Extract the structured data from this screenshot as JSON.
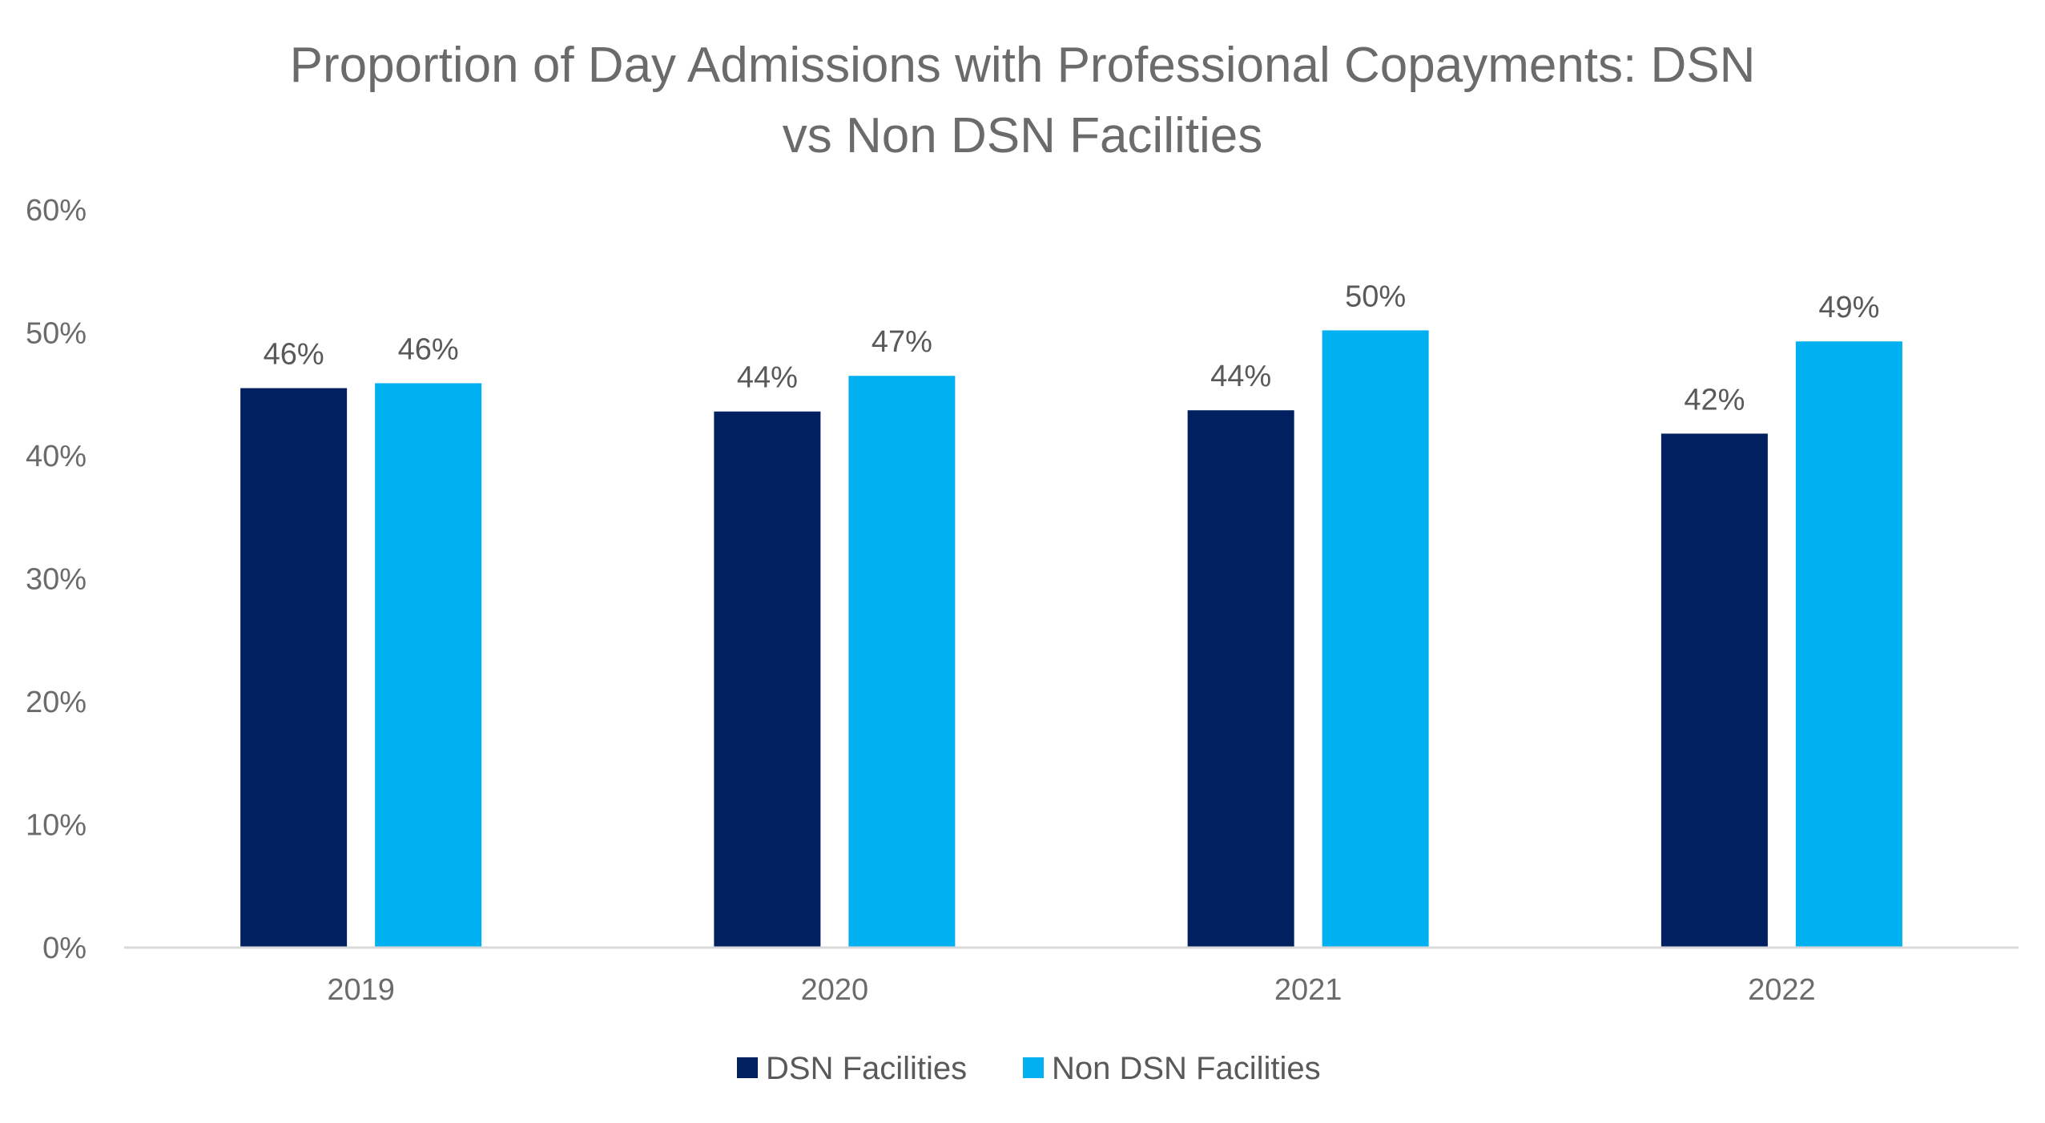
{
  "chart_title": {
    "line1": "Proportion of Day Admissions with Professional Copayments: DSN",
    "line2": "vs Non DSN Facilities"
  },
  "chart_data": {
    "type": "bar",
    "title": "Proportion of Day Admissions with Professional Copayments: DSN vs Non DSN Facilities",
    "categories": [
      "2019",
      "2020",
      "2021",
      "2022"
    ],
    "series": [
      {
        "name": "DSN Facilities",
        "color": "#002060",
        "values": [
          45.5,
          43.6,
          43.7,
          41.8
        ],
        "labels": [
          "46%",
          "44%",
          "44%",
          "42%"
        ]
      },
      {
        "name": "Non DSN Facilities",
        "color": "#00b0f0",
        "values": [
          45.9,
          46.5,
          50.2,
          49.3
        ],
        "labels": [
          "46%",
          "47%",
          "50%",
          "49%"
        ]
      }
    ],
    "ylim": [
      0,
      60
    ],
    "yticks": [
      0,
      10,
      20,
      30,
      40,
      50,
      60
    ],
    "ytick_labels": [
      "0%",
      "10%",
      "20%",
      "30%",
      "40%",
      "50%",
      "60%"
    ],
    "xlabel": "",
    "ylabel": "",
    "grid": false,
    "legend_position": "bottom",
    "axis_color": "#d9d9d9"
  }
}
